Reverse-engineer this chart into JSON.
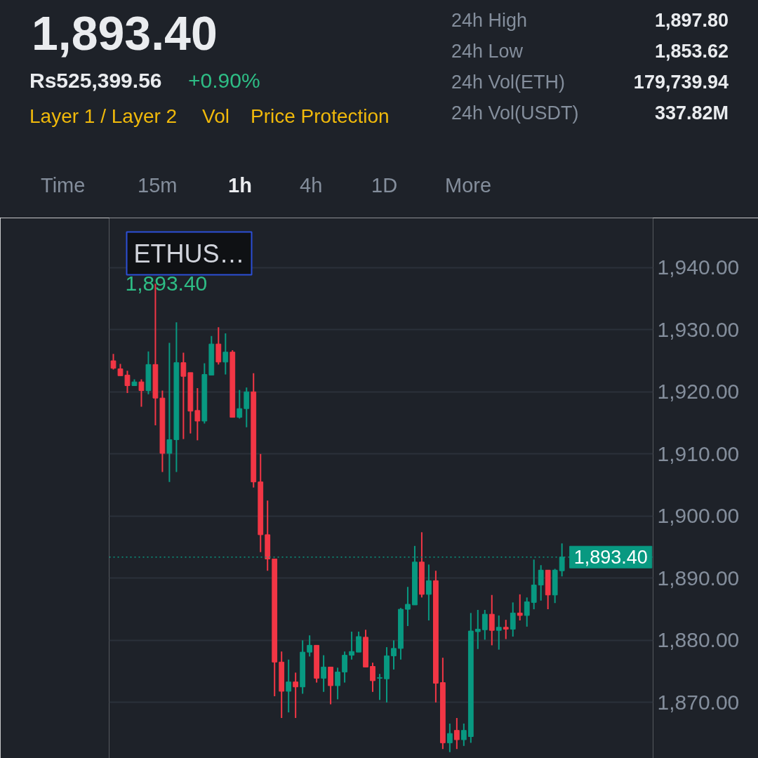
{
  "chart_data": {
    "type": "candlestick",
    "title": "1,893.40",
    "subtitle": "Rs525,399.56",
    "annotations": [
      "+0.90%",
      "Layer 1 / Layer 2",
      "Vol",
      "Price Protection",
      "24h High",
      "1,897.80",
      "24h Low",
      "1,853.62",
      "24h Vol(ETH)",
      "179,739.94",
      "24h Vol(USDT)",
      "337.82M",
      "Time",
      "15m",
      "1h",
      "4h",
      "1D",
      "More",
      "ETHUS…",
      "1,893.40"
    ],
    "categories": [
      null,
      null,
      null,
      null,
      null,
      null,
      null,
      null,
      null,
      null,
      null,
      null,
      null,
      null,
      null,
      null,
      null,
      null,
      null,
      null,
      null,
      null,
      null,
      null,
      null,
      null,
      null,
      null,
      null,
      null,
      null,
      null,
      null,
      null,
      null,
      null,
      null,
      null,
      null,
      null,
      null,
      null,
      null,
      null,
      null,
      null,
      null,
      null,
      null,
      null,
      null,
      null,
      null,
      null,
      null,
      null,
      null,
      null,
      null,
      null,
      null,
      null,
      null,
      null,
      null
    ],
    "ohlc": [
      [
        1925.0,
        1926.1,
        1923.6,
        1923.8
      ],
      [
        1923.7,
        1924.5,
        1922.6,
        1922.6
      ],
      [
        1922.7,
        1923.4,
        1919.8,
        1921.0
      ],
      [
        1921.0,
        1922.0,
        1921.0,
        1921.6
      ],
      [
        1921.6,
        1922.0,
        1917.6,
        1920.2
      ],
      [
        1920.2,
        1926.5,
        1919.6,
        1924.4
      ],
      [
        1924.4,
        1937.4,
        1914.6,
        1919.0
      ],
      [
        1919.0,
        1920.2,
        1907.1,
        1910.1
      ],
      [
        1910.1,
        1927.9,
        1905.5,
        1912.3
      ],
      [
        1912.3,
        1931.2,
        1907.1,
        1924.7
      ],
      [
        1924.7,
        1926.3,
        1912.4,
        1922.5
      ],
      [
        1923.1,
        1923.1,
        1913.3,
        1916.9
      ],
      [
        1917.0,
        1920.6,
        1912.2,
        1915.3
      ],
      [
        1915.3,
        1924.6,
        1914.9,
        1922.8
      ],
      [
        1922.7,
        1929.0,
        1922.7,
        1927.7
      ],
      [
        1927.7,
        1930.4,
        1924.4,
        1924.8
      ],
      [
        1924.8,
        1929.4,
        1922.8,
        1926.4
      ],
      [
        1926.4,
        1926.7,
        1915.9,
        1915.9
      ],
      [
        1915.9,
        1920.3,
        1915.7,
        1917.3
      ],
      [
        1917.3,
        1920.7,
        1914.3,
        1920.0
      ],
      [
        1920.0,
        1923.0,
        1904.6,
        1905.5
      ],
      [
        1905.5,
        1910.0,
        1894.2,
        1897.0
      ],
      [
        1897.0,
        1902.5,
        1891.2,
        1893.1
      ],
      [
        1893.1,
        1893.1,
        1871.0,
        1876.5
      ],
      [
        1876.5,
        1878.2,
        1867.5,
        1871.8
      ],
      [
        1871.8,
        1876.9,
        1868.4,
        1873.3
      ],
      [
        1873.3,
        1874.8,
        1867.5,
        1872.5
      ],
      [
        1872.5,
        1880.0,
        1871.4,
        1878.1
      ],
      [
        1878.1,
        1880.8,
        1877.4,
        1879.2
      ],
      [
        1879.2,
        1879.2,
        1873.2,
        1873.9
      ],
      [
        1873.9,
        1877.6,
        1871.7,
        1875.7
      ],
      [
        1875.7,
        1875.7,
        1869.7,
        1872.7
      ],
      [
        1872.7,
        1875.6,
        1870.5,
        1874.9
      ],
      [
        1874.9,
        1878.2,
        1873.2,
        1877.6
      ],
      [
        1877.6,
        1881.4,
        1876.9,
        1878.2
      ],
      [
        1878.1,
        1881.4,
        1878.1,
        1880.6
      ],
      [
        1880.5,
        1881.7,
        1875.7,
        1875.7
      ],
      [
        1875.8,
        1876.4,
        1871.7,
        1873.5
      ],
      [
        1873.9,
        1874.6,
        1870.4,
        1874.0
      ],
      [
        1873.8,
        1878.9,
        1870.0,
        1877.5
      ],
      [
        1877.5,
        1880.0,
        1875.3,
        1878.7
      ],
      [
        1878.7,
        1885.2,
        1876.9,
        1885.0
      ],
      [
        1885.0,
        1888.6,
        1882.3,
        1885.8
      ],
      [
        1885.7,
        1895.2,
        1885.7,
        1892.6
      ],
      [
        1892.6,
        1897.4,
        1886.9,
        1887.4
      ],
      [
        1887.4,
        1892.2,
        1883.2,
        1889.6
      ],
      [
        1889.6,
        1891.2,
        1870.0,
        1873.1
      ],
      [
        1873.2,
        1877.2,
        1862.5,
        1863.5
      ],
      [
        1863.5,
        1866.6,
        1862.0,
        1865.0
      ],
      [
        1865.5,
        1867.5,
        1862.5,
        1864.0
      ],
      [
        1864.0,
        1866.6,
        1863.0,
        1865.5
      ],
      [
        1864.5,
        1884.4,
        1863.5,
        1881.5
      ],
      [
        1881.4,
        1884.9,
        1878.6,
        1881.8
      ],
      [
        1881.7,
        1884.9,
        1880.1,
        1884.2
      ],
      [
        1884.2,
        1887.3,
        1879.2,
        1881.6
      ],
      [
        1881.6,
        1884.0,
        1878.5,
        1882.1
      ],
      [
        1882.1,
        1883.3,
        1880.2,
        1881.8
      ],
      [
        1881.8,
        1886.1,
        1880.6,
        1884.4
      ],
      [
        1884.4,
        1887.4,
        1883.2,
        1884.0
      ],
      [
        1884.0,
        1886.9,
        1882.2,
        1886.2
      ],
      [
        1886.1,
        1893.0,
        1885.0,
        1888.9
      ],
      [
        1888.9,
        1892.1,
        1886.4,
        1891.3
      ],
      [
        1891.3,
        1891.3,
        1885.0,
        1887.3
      ],
      [
        1887.3,
        1891.5,
        1886.0,
        1891.3
      ],
      [
        1891.2,
        1895.6,
        1890.3,
        1893.4
      ]
    ],
    "colors": [
      "#f23645",
      "#f23645",
      "#f23645",
      "#089981",
      "#f23645",
      "#089981",
      "#f23645",
      "#f23645",
      "#089981",
      "#089981",
      "#f23645",
      "#f23645",
      "#f23645",
      "#089981",
      "#089981",
      "#f23645",
      "#089981",
      "#f23645",
      "#089981",
      "#089981",
      "#f23645",
      "#f23645",
      "#f23645",
      "#f23645",
      "#f23645",
      "#089981",
      "#f23645",
      "#089981",
      "#089981",
      "#f23645",
      "#089981",
      "#f23645",
      "#089981",
      "#089981",
      "#089981",
      "#089981",
      "#f23645",
      "#f23645",
      "#089981",
      "#089981",
      "#089981",
      "#089981",
      "#089981",
      "#089981",
      "#f23645",
      "#089981",
      "#f23645",
      "#f23645",
      "#089981",
      "#f23645",
      "#089981",
      "#089981",
      "#089981",
      "#089981",
      "#f23645",
      "#089981",
      "#f23645",
      "#089981",
      "#f23645",
      "#089981",
      "#089981",
      "#089981",
      "#f23645",
      "#089981",
      "#089981"
    ],
    "ylim": [
      1861,
      1948
    ],
    "yticks": [
      {
        "value": 1870,
        "label": "1,870.00"
      },
      {
        "value": 1880,
        "label": "1,880.00"
      },
      {
        "value": 1890,
        "label": "1,890.00"
      },
      {
        "value": 1900,
        "label": "1,900.00"
      },
      {
        "value": 1910,
        "label": "1,910.00"
      },
      {
        "value": 1920,
        "label": "1,920.00"
      },
      {
        "value": 1930,
        "label": "1,930.00"
      },
      {
        "value": 1940,
        "label": "1,940.00"
      }
    ],
    "ref_lines": [
      {
        "axis": "y",
        "value": 1893.4,
        "label": "1,893.40",
        "color": "#089981",
        "line_style": "dotted"
      }
    ],
    "grid": "y",
    "tick_labels": "y"
  }
}
